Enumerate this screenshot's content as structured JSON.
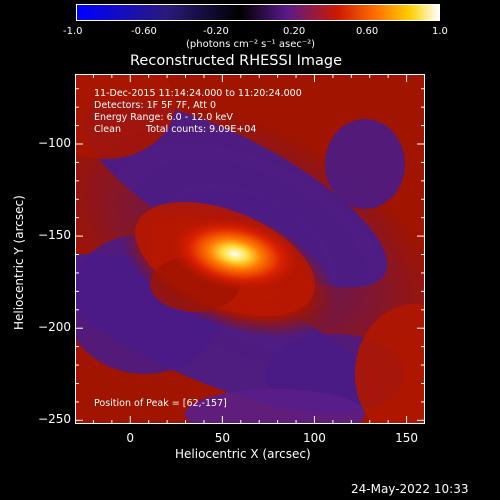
{
  "colorbar": {
    "tick_labels": [
      "-1.0",
      "-0.60",
      "-0.20",
      "0.20",
      "0.60",
      "1.0"
    ],
    "units": "(photons cm⁻² s⁻¹ asec⁻²)",
    "range": [
      -1.0,
      1.0
    ],
    "colors": [
      "#0000ff",
      "#2a1a7a",
      "#000000",
      "#5a1a8a",
      "#cc1a00",
      "#ff6a00",
      "#ffd000",
      "#ffffff"
    ]
  },
  "chart_data": {
    "type": "heatmap",
    "title": "Reconstructed RHESSI Image",
    "xlabel": "Heliocentric X (arcsec)",
    "ylabel": "Heliocentric Y (arcsec)",
    "xlim": [
      -30,
      160
    ],
    "ylim": [
      -252,
      -62
    ],
    "xticks": [
      0,
      50,
      100,
      150
    ],
    "yticks": [
      -100,
      -150,
      -200,
      -250
    ],
    "peak": [
      62,
      -157
    ],
    "annotations": {
      "line1": "11-Dec-2015 11:14:24.000 to 11:20:24.000",
      "line2": "Detectors: 1F 5F 7F, Att 0",
      "line3": "Energy Range: 6.0 - 12.0 keV",
      "line4_a": "Clean",
      "line4_b": "Total counts: 9.09E+04",
      "peak_text": "Position of Peak = [62,-157]"
    }
  },
  "timestamp": "24-May-2022 10:33"
}
